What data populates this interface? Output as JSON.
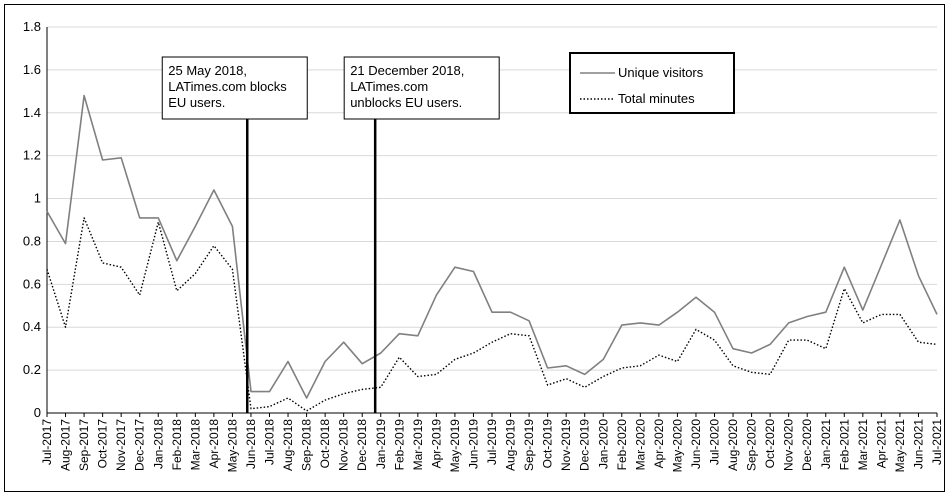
{
  "chart_data": {
    "type": "line",
    "title": "",
    "xlabel": "",
    "ylabel": "",
    "ylim": [
      0,
      1.8
    ],
    "yticks": [
      "0",
      "0.2",
      "0.4",
      "0.6",
      "0.8",
      "1",
      "1.2",
      "1.4",
      "1.6",
      "1.8"
    ],
    "grid": true,
    "legend_position": "top-right",
    "categories": [
      "Jul-2017",
      "Aug-2017",
      "Sep-2017",
      "Oct-2017",
      "Nov-2017",
      "Dec-2017",
      "Jan-2018",
      "Feb-2018",
      "Mar-2018",
      "Apr-2018",
      "May-2018",
      "Jun-2018",
      "Jul-2018",
      "Aug-2018",
      "Sep-2018",
      "Oct-2018",
      "Nov-2018",
      "Dec-2018",
      "Jan-2019",
      "Feb-2019",
      "Mar-2019",
      "Apr-2019",
      "May-2019",
      "Jun-2019",
      "Jul-2019",
      "Aug-2019",
      "Sep-2019",
      "Oct-2019",
      "Nov-2019",
      "Dec-2019",
      "Jan-2020",
      "Feb-2020",
      "Mar-2020",
      "Apr-2020",
      "May-2020",
      "Jun-2020",
      "Jul-2020",
      "Aug-2020",
      "Sep-2020",
      "Oct-2020",
      "Nov-2020",
      "Dec-2020",
      "Jan-2021",
      "Feb-2021",
      "Mar-2021",
      "Apr-2021",
      "May-2021",
      "Jun-2021",
      "Jul-2021"
    ],
    "series": [
      {
        "name": "Unique visitors",
        "style": "solid",
        "color": "#808080",
        "values": [
          0.94,
          0.79,
          1.48,
          1.18,
          1.19,
          0.91,
          0.91,
          0.71,
          0.87,
          1.04,
          0.87,
          0.1,
          0.1,
          0.24,
          0.07,
          0.24,
          0.33,
          0.23,
          0.28,
          0.37,
          0.36,
          0.55,
          0.68,
          0.66,
          0.47,
          0.47,
          0.43,
          0.21,
          0.22,
          0.18,
          0.25,
          0.41,
          0.42,
          0.41,
          0.47,
          0.54,
          0.47,
          0.3,
          0.28,
          0.32,
          0.42,
          0.45,
          0.47,
          0.68,
          0.48,
          0.69,
          0.9,
          0.64,
          0.46
        ]
      },
      {
        "name": "Total minutes",
        "style": "dotted",
        "color": "#000000",
        "values": [
          0.67,
          0.4,
          0.91,
          0.7,
          0.68,
          0.55,
          0.89,
          0.57,
          0.65,
          0.78,
          0.67,
          0.02,
          0.03,
          0.07,
          0.01,
          0.06,
          0.09,
          0.11,
          0.12,
          0.26,
          0.17,
          0.18,
          0.25,
          0.28,
          0.33,
          0.37,
          0.36,
          0.13,
          0.16,
          0.12,
          0.17,
          0.21,
          0.22,
          0.27,
          0.24,
          0.39,
          0.34,
          0.22,
          0.19,
          0.18,
          0.34,
          0.34,
          0.3,
          0.58,
          0.42,
          0.46,
          0.46,
          0.33,
          0.32
        ]
      }
    ],
    "annotations": [
      {
        "lines": [
          "25 May 2018,",
          "LATimes.com blocks",
          "EU users."
        ],
        "at_category_index": 10.8
      },
      {
        "lines": [
          "21 December 2018,",
          "LATimes.com",
          "unblocks EU users."
        ],
        "at_category_index": 17.7
      }
    ]
  }
}
